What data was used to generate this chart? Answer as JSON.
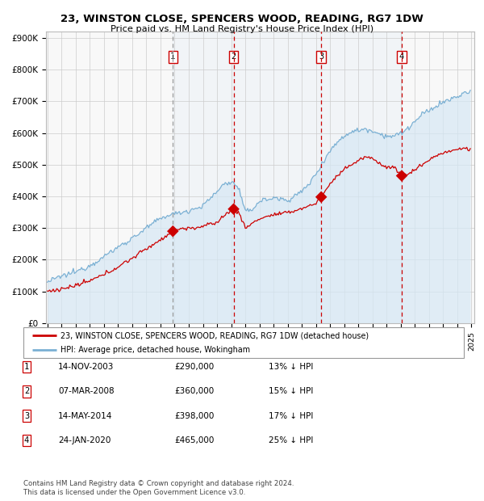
{
  "title1": "23, WINSTON CLOSE, SPENCERS WOOD, READING, RG7 1DW",
  "title2": "Price paid vs. HM Land Registry's House Price Index (HPI)",
  "legend_line1": "23, WINSTON CLOSE, SPENCERS WOOD, READING, RG7 1DW (detached house)",
  "legend_line2": "HPI: Average price, detached house, Wokingham",
  "red_color": "#cc0000",
  "blue_color": "#7ab0d4",
  "blue_fill": "#d6e8f5",
  "sale_dates_num": [
    2003.876,
    2008.172,
    2014.37,
    2020.065
  ],
  "sale_prices": [
    290000,
    360000,
    398000,
    465000
  ],
  "sale_labels": [
    "1",
    "2",
    "3",
    "4"
  ],
  "sale_info": [
    {
      "label": "1",
      "date": "14-NOV-2003",
      "price": "£290,000",
      "hpi": "13% ↓ HPI"
    },
    {
      "label": "2",
      "date": "07-MAR-2008",
      "price": "£360,000",
      "hpi": "15% ↓ HPI"
    },
    {
      "label": "3",
      "date": "14-MAY-2014",
      "price": "£398,000",
      "hpi": "17% ↓ HPI"
    },
    {
      "label": "4",
      "date": "24-JAN-2020",
      "price": "£465,000",
      "hpi": "25% ↓ HPI"
    }
  ],
  "ylabel_ticks": [
    0,
    100000,
    200000,
    300000,
    400000,
    500000,
    600000,
    700000,
    800000,
    900000
  ],
  "ylabel_labels": [
    "£0",
    "£100K",
    "£200K",
    "£300K",
    "£400K",
    "£500K",
    "£600K",
    "£700K",
    "£800K",
    "£900K"
  ],
  "xmin": 1994.9,
  "xmax": 2025.2,
  "ymin": 0,
  "ymax": 920000,
  "footnote": "Contains HM Land Registry data © Crown copyright and database right 2024.\nThis data is licensed under the Open Government Licence v3.0.",
  "background_color": "#ffffff",
  "grid_color": "#cccccc",
  "hpi_anchors_x": [
    1995.0,
    1996.0,
    1997.0,
    1998.0,
    1999.0,
    2000.0,
    2001.0,
    2002.0,
    2003.0,
    2003.5,
    2004.0,
    2004.5,
    2005.0,
    2006.0,
    2007.0,
    2007.5,
    2008.0,
    2008.5,
    2009.0,
    2009.5,
    2010.0,
    2011.0,
    2012.0,
    2013.0,
    2013.5,
    2014.0,
    2014.5,
    2015.0,
    2015.5,
    2016.0,
    2016.5,
    2017.0,
    2017.5,
    2018.0,
    2018.5,
    2019.0,
    2019.5,
    2020.0,
    2020.5,
    2021.0,
    2021.5,
    2022.0,
    2022.5,
    2023.0,
    2023.5,
    2024.0,
    2024.5,
    2024.9
  ],
  "hpi_anchors_y": [
    130000,
    148000,
    162000,
    182000,
    210000,
    240000,
    268000,
    300000,
    330000,
    340000,
    345000,
    350000,
    355000,
    370000,
    415000,
    440000,
    445000,
    430000,
    350000,
    360000,
    385000,
    395000,
    388000,
    415000,
    440000,
    470000,
    510000,
    545000,
    570000,
    590000,
    605000,
    608000,
    613000,
    607000,
    598000,
    590000,
    590000,
    598000,
    615000,
    635000,
    658000,
    670000,
    685000,
    698000,
    705000,
    715000,
    725000,
    730000
  ],
  "red_anchors_x": [
    1995.0,
    1996.0,
    1997.0,
    1998.0,
    1999.0,
    2000.0,
    2001.0,
    2002.0,
    2003.0,
    2003.876,
    2004.5,
    2005.0,
    2006.0,
    2007.0,
    2007.5,
    2008.172,
    2008.5,
    2009.0,
    2009.5,
    2010.0,
    2011.0,
    2012.0,
    2013.0,
    2014.0,
    2014.37,
    2015.0,
    2016.0,
    2017.0,
    2017.5,
    2018.0,
    2018.5,
    2019.0,
    2019.5,
    2020.065,
    2020.5,
    2021.0,
    2021.5,
    2022.0,
    2022.5,
    2023.0,
    2023.5,
    2024.0,
    2024.5,
    2024.9
  ],
  "red_anchors_y": [
    100000,
    108000,
    118000,
    133000,
    153000,
    178000,
    205000,
    235000,
    263000,
    290000,
    300000,
    298000,
    305000,
    318000,
    340000,
    360000,
    352000,
    300000,
    315000,
    330000,
    342000,
    348000,
    362000,
    378000,
    398000,
    440000,
    488000,
    512000,
    525000,
    518000,
    505000,
    492000,
    492000,
    465000,
    468000,
    485000,
    500000,
    515000,
    528000,
    538000,
    542000,
    548000,
    552000,
    548000
  ]
}
